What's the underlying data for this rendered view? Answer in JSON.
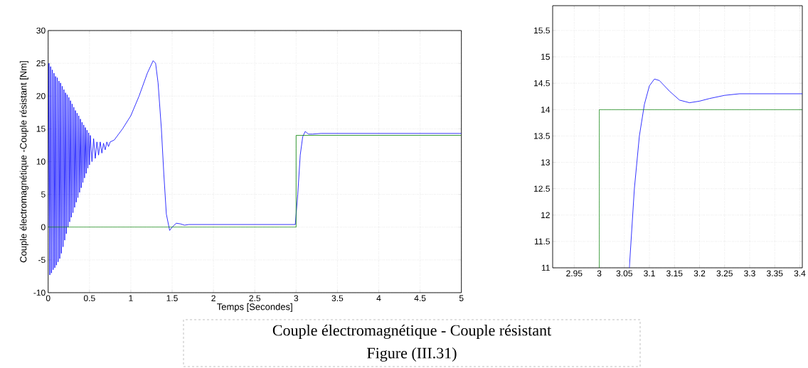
{
  "chart_data": [
    {
      "type": "line",
      "xlabel": "Temps [Secondes]",
      "ylabel": "Couple électromagnétique  -Couple résistant  [Nm]",
      "xlim": [
        0,
        5
      ],
      "xticks": [
        0,
        0.5,
        1,
        1.5,
        2,
        2.5,
        3,
        3.5,
        4,
        4.5,
        5
      ],
      "ylim": [
        -10,
        30
      ],
      "yticks": [
        -10,
        -5,
        0,
        5,
        10,
        15,
        20,
        25,
        30
      ],
      "grid": true,
      "series": [
        {
          "color": "#0000ff",
          "x": [
            0,
            0.01,
            0.02,
            0.03,
            0.04,
            0.05,
            0.06,
            0.07,
            0.08,
            0.09,
            0.1,
            0.11,
            0.12,
            0.13,
            0.14,
            0.15,
            0.16,
            0.17,
            0.18,
            0.19,
            0.2,
            0.21,
            0.22,
            0.23,
            0.24,
            0.25,
            0.26,
            0.27,
            0.28,
            0.29,
            0.3,
            0.31,
            0.32,
            0.33,
            0.34,
            0.35,
            0.36,
            0.37,
            0.38,
            0.39,
            0.4,
            0.41,
            0.42,
            0.43,
            0.44,
            0.45,
            0.46,
            0.47,
            0.48,
            0.49,
            0.5,
            0.51,
            0.53,
            0.55,
            0.57,
            0.59,
            0.61,
            0.63,
            0.65,
            0.67,
            0.69,
            0.71,
            0.73,
            0.75,
            0.8,
            0.9,
            1.0,
            1.1,
            1.2,
            1.27,
            1.3,
            1.33,
            1.37,
            1.4,
            1.43,
            1.47,
            1.5,
            1.55,
            1.6,
            1.65,
            1.7,
            2.99,
            3.02,
            3.05,
            3.08,
            3.11,
            3.15,
            3.2,
            3.3,
            5
          ],
          "values": [
            0,
            25,
            -7.3,
            24.5,
            -7,
            24,
            -6.5,
            23.5,
            -6.2,
            23,
            -5.8,
            22.8,
            -5.3,
            22.3,
            -4.8,
            22,
            -4,
            21.5,
            -3,
            21,
            -2,
            20.5,
            -1,
            20.2,
            0,
            19.8,
            0.8,
            19.3,
            1.5,
            18.8,
            2.2,
            18.3,
            3,
            17.8,
            3.8,
            17.4,
            4.5,
            17,
            5.3,
            16.5,
            6,
            16,
            6.8,
            15.6,
            7.5,
            15.2,
            8.2,
            14.8,
            9,
            14.4,
            9.5,
            14,
            10,
            13.5,
            10.5,
            13,
            11,
            13,
            11.3,
            12.8,
            11.8,
            13,
            12.3,
            13,
            13.3,
            15,
            17,
            20,
            23.5,
            25.4,
            25,
            22,
            15,
            8,
            2,
            -0.5,
            0,
            0.6,
            0.5,
            0.3,
            0.4,
            0.4,
            5,
            11,
            13.8,
            14.6,
            14.2,
            14.2,
            14.3,
            14.3
          ]
        },
        {
          "color": "#008000",
          "x": [
            0,
            3,
            3,
            5
          ],
          "values": [
            0,
            0,
            14,
            14
          ]
        }
      ],
      "annotations": [
        "Couple électromagnétique  -  Couple résistant",
        "Figure (III.31)"
      ]
    },
    {
      "type": "line",
      "xlim": [
        2.907,
        3.405
      ],
      "xticks": [
        2.95,
        3,
        3.05,
        3.1,
        3.15,
        3.2,
        3.25,
        3.3,
        3.35,
        3.4
      ],
      "ylim": [
        11,
        15.97
      ],
      "yticks": [
        11,
        11.5,
        12,
        12.5,
        13,
        13.5,
        14,
        14.5,
        15,
        15.5
      ],
      "grid": true,
      "series": [
        {
          "color": "#0000ff",
          "x": [
            3.06,
            3.07,
            3.08,
            3.09,
            3.1,
            3.11,
            3.12,
            3.14,
            3.16,
            3.18,
            3.2,
            3.22,
            3.25,
            3.28,
            3.405
          ],
          "values": [
            11,
            12.5,
            13.5,
            14.1,
            14.45,
            14.58,
            14.55,
            14.35,
            14.18,
            14.13,
            14.16,
            14.21,
            14.27,
            14.3,
            14.3
          ]
        },
        {
          "color": "#008000",
          "x": [
            3,
            3,
            3.405
          ],
          "values": [
            11,
            14,
            14
          ]
        }
      ]
    }
  ]
}
